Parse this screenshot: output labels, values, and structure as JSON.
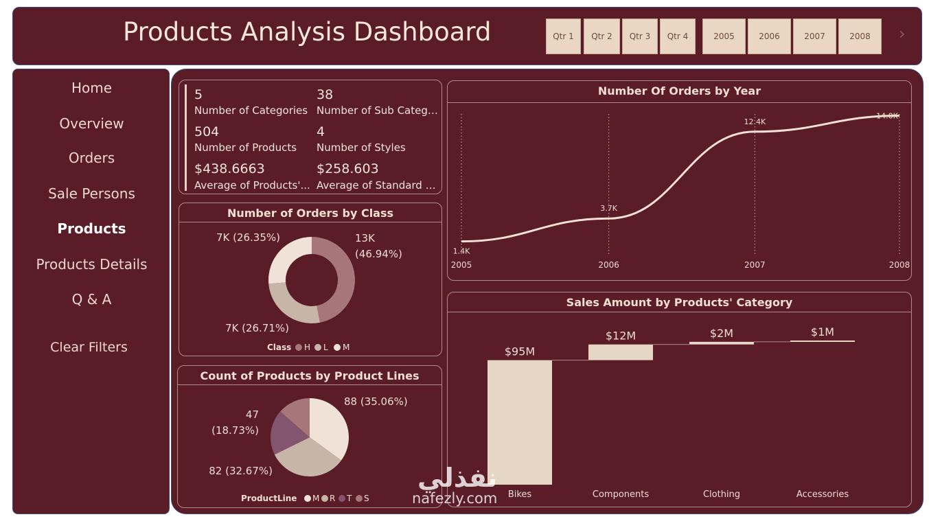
{
  "header": {
    "title": "Products Analysis Dashboard"
  },
  "slicers": {
    "quarters": [
      "Qtr 1",
      "Qtr 2",
      "Qtr 3",
      "Qtr 4"
    ],
    "years": [
      "2005",
      "2006",
      "2007",
      "2008"
    ]
  },
  "nav": [
    "Home",
    "Overview",
    "Orders",
    "Sale Persons",
    "Products",
    "Products Details",
    "Q & A"
  ],
  "nav_active": "Products",
  "clear_filters": "Clear Filters",
  "kpis": [
    {
      "value": "5",
      "label": "Number of Categories"
    },
    {
      "value": "38",
      "label": "Number of Sub Categor..."
    },
    {
      "value": "504",
      "label": "Number of Products"
    },
    {
      "value": "4",
      "label": "Number of Styles"
    },
    {
      "value": "$438.6663",
      "label": "Average of Products'..."
    },
    {
      "value": "$258.603",
      "label": "Average of Standard Cost"
    }
  ],
  "watermark": {
    "arabic": "نفذلي",
    "latin": "nafezly.com"
  },
  "colors": {
    "panel": "#5a1c26",
    "accent": "#f3e4dc",
    "border": "#3e4a86"
  },
  "chart_data": [
    {
      "type": "pie",
      "donut": true,
      "title": "Number of Orders by Class",
      "legend_title": "Class",
      "legend_position": "bottom",
      "categories": [
        "H",
        "L",
        "M"
      ],
      "labels": [
        "13K (46.94%)",
        "7K (26.71%)",
        "7K (26.35%)"
      ],
      "values": [
        13,
        7,
        7
      ],
      "percents": [
        46.94,
        26.71,
        26.35
      ],
      "colors": [
        "#a67678",
        "#c7b5a8",
        "#f0e2d6"
      ]
    },
    {
      "type": "pie",
      "title": "Count of Products by Product Lines",
      "legend_title": "ProductLine",
      "legend_position": "bottom",
      "categories": [
        "M",
        "R",
        "T",
        "S"
      ],
      "slices": [
        {
          "category": "M",
          "value": 88,
          "percent": 35.06,
          "label": "88 (35.06%)",
          "color": "#f0e2d6"
        },
        {
          "category": "R",
          "value": 82,
          "percent": 32.67,
          "label": "82 (32.67%)",
          "color": "#c7b5a8"
        },
        {
          "category": "T",
          "value": 47,
          "percent": 18.73,
          "label": "47 (18.73%)",
          "color": "#84556e"
        },
        {
          "category": "S",
          "value": 34,
          "percent": 13.54,
          "label": "",
          "color": "#a67678"
        }
      ]
    },
    {
      "type": "line",
      "title": "Number Of Orders by Year",
      "x": [
        "2005",
        "2006",
        "2007",
        "2008"
      ],
      "values": [
        1.4,
        3.7,
        12.4,
        14.0
      ],
      "labels": [
        "1.4K",
        "3.7K",
        "12.4K",
        "14.0K"
      ],
      "ylim": [
        0,
        15
      ],
      "grid": "vertical dotted",
      "color": "#f3e0d6"
    },
    {
      "type": "bar",
      "subtype": "waterfall",
      "title": "Sales Amount by Products' Category",
      "categories": [
        "Bikes",
        "Components",
        "Clothing",
        "Accessories"
      ],
      "values": [
        95,
        12,
        2,
        1
      ],
      "labels": [
        "$95M",
        "$12M",
        "$2M",
        "$1M"
      ],
      "unit": "$M",
      "color": "#e6d6c6"
    }
  ]
}
